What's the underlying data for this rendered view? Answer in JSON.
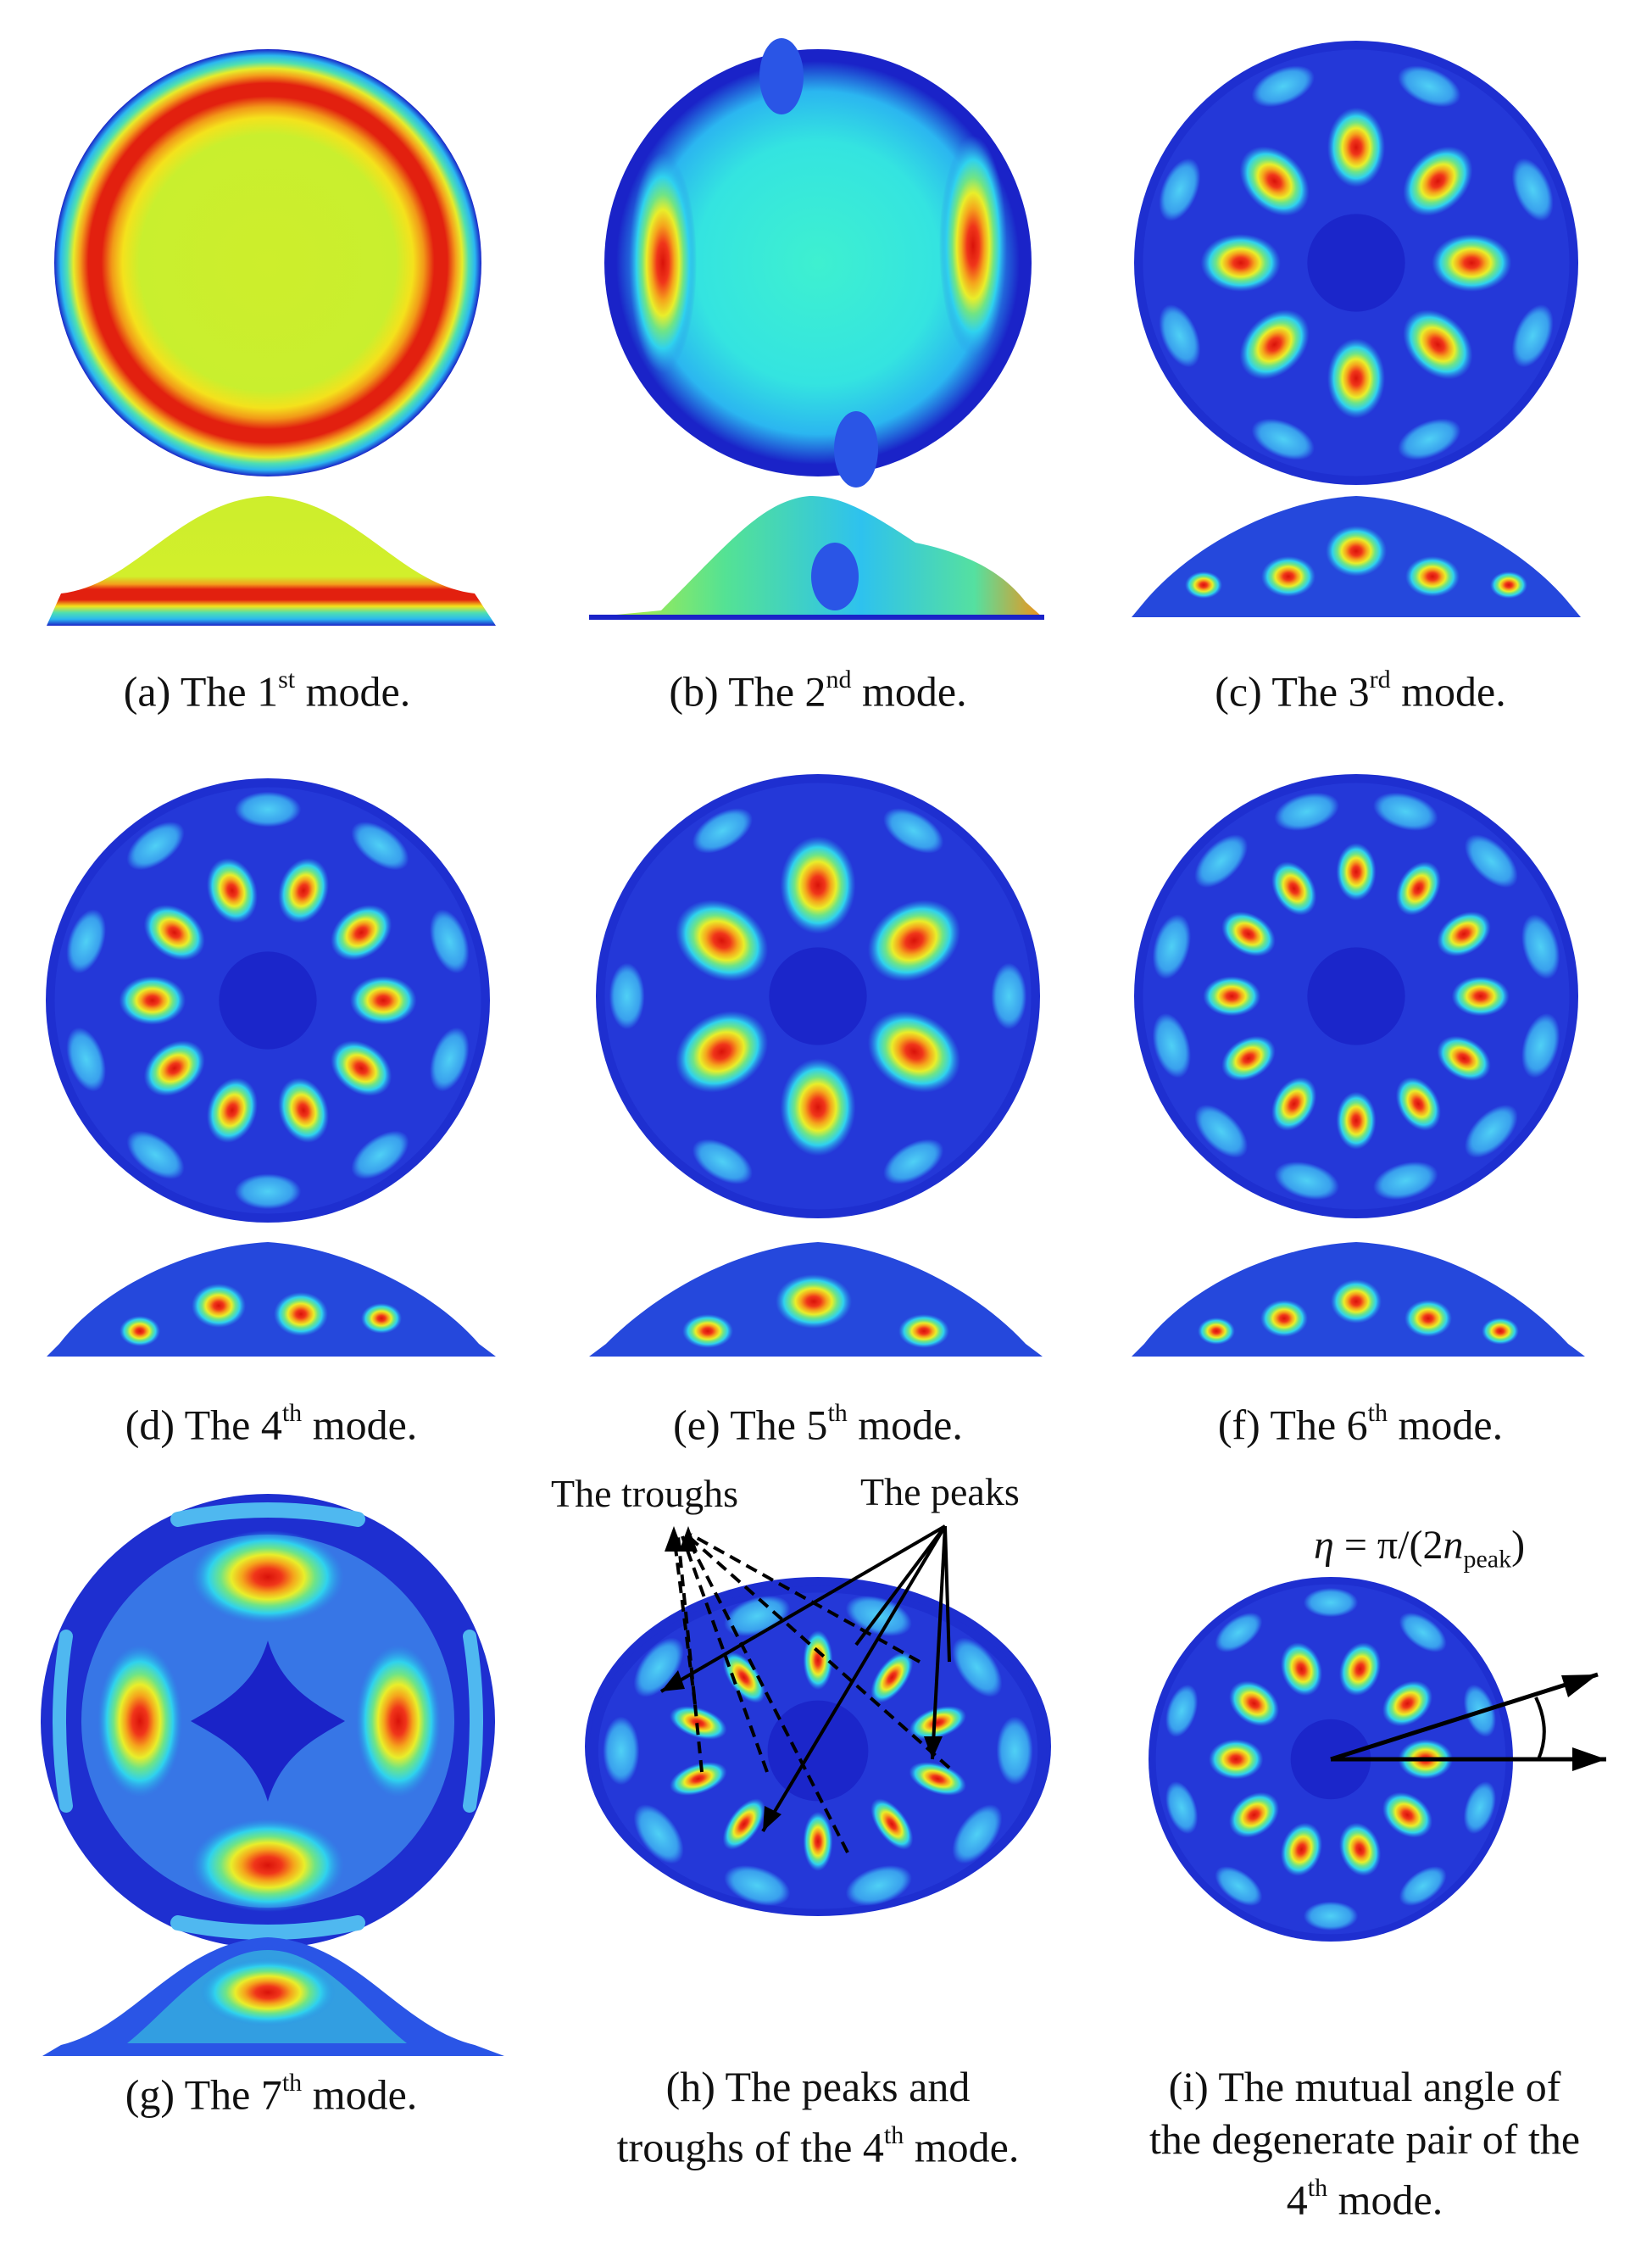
{
  "captions": [
    {
      "id": "a",
      "pre": "(a) The 1",
      "sup": "st",
      "post": " mode."
    },
    {
      "id": "b",
      "pre": "(b) The 2",
      "sup": "nd",
      "post": " mode."
    },
    {
      "id": "c",
      "pre": "(c) The 3",
      "sup": "rd",
      "post": " mode."
    },
    {
      "id": "d",
      "pre": "(d) The 4",
      "sup": "th",
      "post": " mode."
    },
    {
      "id": "e",
      "pre": "(e) The 5",
      "sup": "th",
      "post": " mode."
    },
    {
      "id": "f",
      "pre": "(f) The 6",
      "sup": "th",
      "post": " mode."
    },
    {
      "id": "g",
      "pre": "(g) The 7",
      "sup": "th",
      "post": " mode."
    }
  ],
  "caption_h": {
    "line1": "(h) The peaks and",
    "line2_pre": "troughs of the 4",
    "sup": "th",
    "line2_post": " mode."
  },
  "caption_i": {
    "line1": "(i) The mutual angle of",
    "line2": "the degenerate pair of the",
    "line3_pre": "4",
    "sup": "th",
    "line3_post": " mode."
  },
  "labels": {
    "troughs": "The troughs",
    "peaks": "The peaks"
  },
  "formula": {
    "eta": "η",
    "eq": " = π/(2",
    "n": "n",
    "sub": "peak",
    ")": ")"
  },
  "colors": {
    "deep_blue": "#1a23c8",
    "blue": "#2a55e6",
    "light_blue": "#29b6f0",
    "cyan": "#2ee0e8",
    "green": "#62e08a",
    "yellow_green": "#c8f02e",
    "yellow": "#f5e619",
    "orange": "#f29218",
    "red": "#e01b12"
  }
}
